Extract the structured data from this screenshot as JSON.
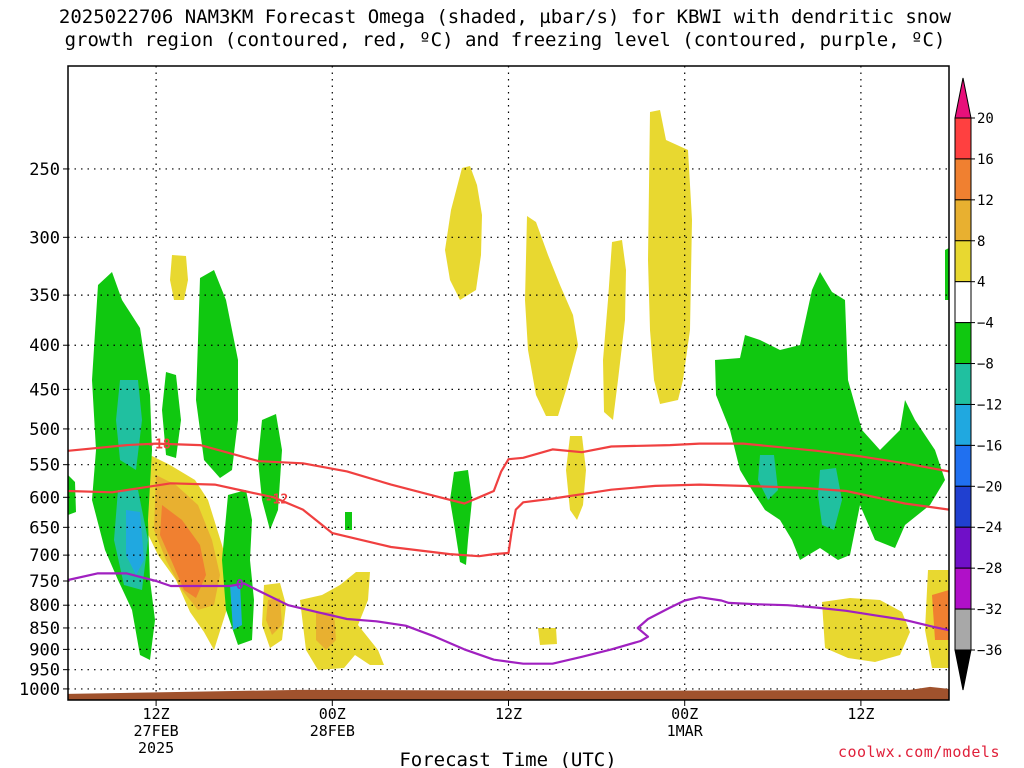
{
  "title_line1": "2025022706 NAM3KM Forecast Omega (shaded, µbar/s) for KBWI with dendritic snow",
  "title_line2": "growth region (contoured, red, ºC) and freezing level (contoured, purple, ºC)",
  "credit": "coolwx.com/models",
  "chart_data": {
    "type": "time-height cross section",
    "xlabel": "Forecast Time (UTC)",
    "x_range_hours": [
      0,
      60
    ],
    "x_ticks": [
      {
        "hour": 6,
        "label": "12Z",
        "sub1": "27FEB",
        "sub2": "2025"
      },
      {
        "hour": 18,
        "label": "00Z",
        "sub1": "28FEB",
        "sub2": ""
      },
      {
        "hour": 30,
        "label": "12Z",
        "sub1": "",
        "sub2": ""
      },
      {
        "hour": 42,
        "label": "00Z",
        "sub1": "1MAR",
        "sub2": ""
      },
      {
        "hour": 54,
        "label": "12Z",
        "sub1": "",
        "sub2": ""
      }
    ],
    "y_axis": "pressure (hPa), log scale",
    "y_range": [
      1030,
      190
    ],
    "y_ticks": [
      250,
      300,
      350,
      400,
      450,
      500,
      550,
      600,
      650,
      700,
      750,
      800,
      850,
      900,
      950,
      1000
    ],
    "colorbar": {
      "units": "µbar/s",
      "labels": [
        "20",
        "16",
        "12",
        "8",
        "4",
        "−4",
        "−8",
        "−12",
        "−16",
        "−20",
        "−24",
        "−28",
        "−32",
        "−36"
      ],
      "colors": [
        "#e8107a",
        "#ff4040",
        "#f08030",
        "#e8b030",
        "#e8d830",
        "#ffffff",
        "#10c810",
        "#20c0a0",
        "#20a8e0",
        "#2070f0",
        "#2040d0",
        "#7010c8",
        "#b010c8",
        "#a8a8a8",
        "#000000"
      ]
    },
    "contours": [
      {
        "name": "-18",
        "color": "#f04040",
        "label_hour": 6.2,
        "points": [
          [
            0,
            530
          ],
          [
            4,
            522
          ],
          [
            6,
            520
          ],
          [
            9,
            522
          ],
          [
            13,
            545
          ],
          [
            16,
            548
          ],
          [
            19,
            560
          ],
          [
            22,
            580
          ],
          [
            25,
            598
          ],
          [
            27,
            610
          ],
          [
            28,
            600
          ],
          [
            29,
            590
          ],
          [
            29.5,
            560
          ],
          [
            30,
            542
          ],
          [
            31,
            540
          ],
          [
            33,
            528
          ],
          [
            35,
            532
          ],
          [
            37,
            524
          ],
          [
            41,
            522
          ],
          [
            43,
            520
          ],
          [
            46,
            520
          ],
          [
            51,
            530
          ],
          [
            54,
            538
          ],
          [
            57,
            548
          ],
          [
            60,
            560
          ]
        ]
      },
      {
        "name": "-12",
        "color": "#f04040",
        "label_hour": 14.2,
        "points": [
          [
            0,
            590
          ],
          [
            3,
            592
          ],
          [
            5,
            585
          ],
          [
            7,
            578
          ],
          [
            10,
            580
          ],
          [
            12,
            590
          ],
          [
            14,
            600
          ],
          [
            16,
            620
          ],
          [
            18,
            660
          ],
          [
            22,
            685
          ],
          [
            26,
            698
          ],
          [
            28,
            702
          ],
          [
            29,
            698
          ],
          [
            30,
            696
          ],
          [
            30.2,
            660
          ],
          [
            30.5,
            620
          ],
          [
            31,
            608
          ],
          [
            33,
            602
          ],
          [
            35,
            595
          ],
          [
            37,
            588
          ],
          [
            40,
            582
          ],
          [
            43,
            580
          ],
          [
            46,
            582
          ],
          [
            50,
            585
          ],
          [
            53,
            590
          ],
          [
            57,
            610
          ],
          [
            60,
            620
          ]
        ]
      },
      {
        "name": "0",
        "color": "#a020c0",
        "label_hour": 11.7,
        "points": [
          [
            0,
            748
          ],
          [
            2,
            735
          ],
          [
            4,
            735
          ],
          [
            6,
            750
          ],
          [
            7,
            760
          ],
          [
            9,
            760
          ],
          [
            11,
            760
          ],
          [
            12,
            755
          ],
          [
            13,
            770
          ],
          [
            15,
            800
          ],
          [
            17,
            815
          ],
          [
            19,
            830
          ],
          [
            21,
            835
          ],
          [
            23,
            845
          ],
          [
            25,
            870
          ],
          [
            27,
            900
          ],
          [
            29,
            925
          ],
          [
            31,
            935
          ],
          [
            33,
            935
          ],
          [
            35,
            918
          ],
          [
            37,
            900
          ],
          [
            39,
            880
          ],
          [
            39.5,
            870
          ],
          [
            38.8,
            850
          ],
          [
            39.5,
            830
          ],
          [
            41,
            805
          ],
          [
            42,
            790
          ],
          [
            43,
            783
          ],
          [
            44.5,
            790
          ],
          [
            45,
            795
          ],
          [
            47,
            798
          ],
          [
            49,
            800
          ],
          [
            51,
            805
          ],
          [
            53,
            812
          ],
          [
            55,
            822
          ],
          [
            57,
            832
          ],
          [
            59,
            848
          ],
          [
            60,
            855
          ]
        ]
      }
    ],
    "ground": {
      "color": "#a0522d",
      "pressure_top": 1008
    }
  }
}
